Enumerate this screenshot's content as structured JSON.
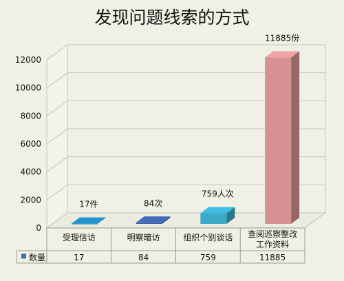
{
  "chart_data": {
    "type": "bar",
    "title": "发现问题线索的方式",
    "categories": [
      [
        "受理信访"
      ],
      [
        "明察暗访"
      ],
      [
        "组织个别谈话"
      ],
      [
        "查阅巡察整改",
        "工作资料"
      ]
    ],
    "series": [
      {
        "name": "数量",
        "values": [
          17,
          84,
          759,
          11885
        ]
      }
    ],
    "data_labels": [
      "17件",
      "84次",
      "759人次",
      "11885份"
    ],
    "yticks": [
      0,
      2000,
      4000,
      6000,
      8000,
      10000,
      12000
    ],
    "ylim": [
      0,
      12000
    ],
    "grid": true,
    "legend": "data-table",
    "colors": {
      "bars": [
        "#1f84b6",
        "#3d5fa6",
        "#3aaac7",
        "#d79193"
      ],
      "series_marker": "#3d6fb0",
      "background": "#f1f0e4"
    }
  }
}
